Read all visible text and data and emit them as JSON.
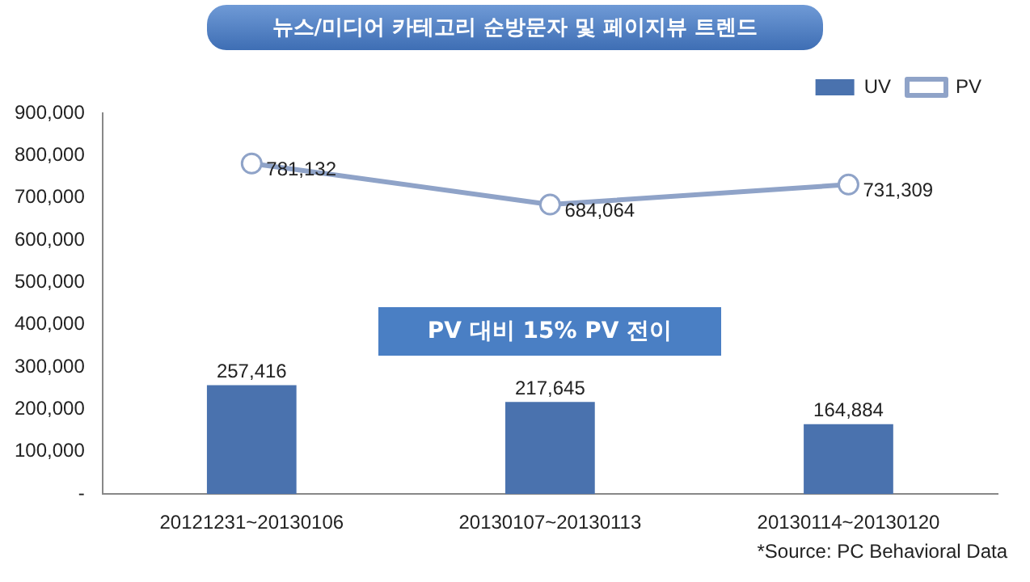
{
  "chart_data": {
    "type": "bar",
    "title": "뉴스/미디어 카테고리 순방문자 및 페이지뷰 트렌드",
    "categories": [
      "20121231~20130106",
      "20130107~20130113",
      "20130114~20130120"
    ],
    "series": [
      {
        "name": "UV",
        "color": "#4a72ae",
        "values": [
          257416,
          217645,
          164884
        ],
        "value_labels": [
          "257,416",
          "217,645",
          "164,884"
        ]
      },
      {
        "name": "PV",
        "type": "line",
        "color": "#8fa3c8",
        "marker": "circle",
        "values": [
          781132,
          684064,
          731309
        ],
        "value_labels": [
          "781,132",
          "684,064",
          "731,309"
        ]
      }
    ],
    "ylim": [
      0,
      900000
    ],
    "yticks": [
      {
        "value": 0,
        "label": "-"
      },
      {
        "value": 100000,
        "label": "100,000"
      },
      {
        "value": 200000,
        "label": "200,000"
      },
      {
        "value": 300000,
        "label": "300,000"
      },
      {
        "value": 400000,
        "label": "400,000"
      },
      {
        "value": 500000,
        "label": "500,000"
      },
      {
        "value": 600000,
        "label": "600,000"
      },
      {
        "value": 700000,
        "label": "700,000"
      },
      {
        "value": 800000,
        "label": "800,000"
      },
      {
        "value": 900000,
        "label": "900,000"
      }
    ],
    "legend": "top right",
    "annotations": [
      "PV 대비 15% PV 전이",
      "*Source: PC Behavioral Data"
    ]
  }
}
